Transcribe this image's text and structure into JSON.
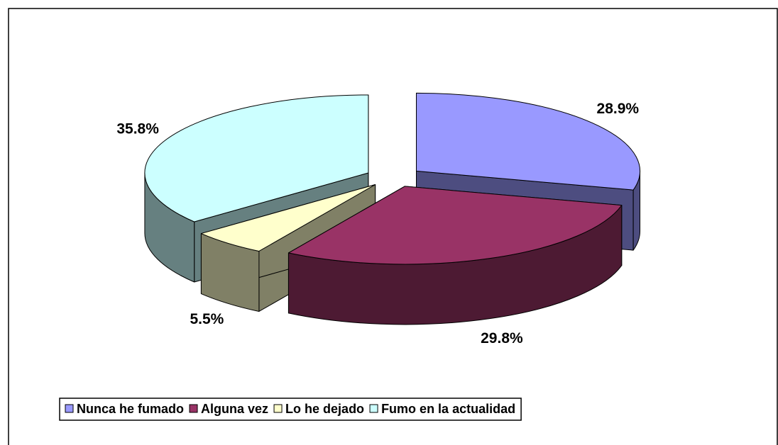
{
  "chart_data": {
    "type": "pie3d",
    "categories": [
      "Nunca he fumado",
      "Alguna vez",
      "Lo he dejado",
      "Fumo en la actualidad"
    ],
    "values": [
      28.9,
      29.8,
      5.5,
      35.8
    ],
    "value_labels": [
      "28.9%",
      "29.8%",
      "5.5%",
      "35.8%"
    ],
    "colors": [
      "#9999ff",
      "#993366",
      "#ffffcc",
      "#ccffff"
    ],
    "legend": "bottom"
  }
}
